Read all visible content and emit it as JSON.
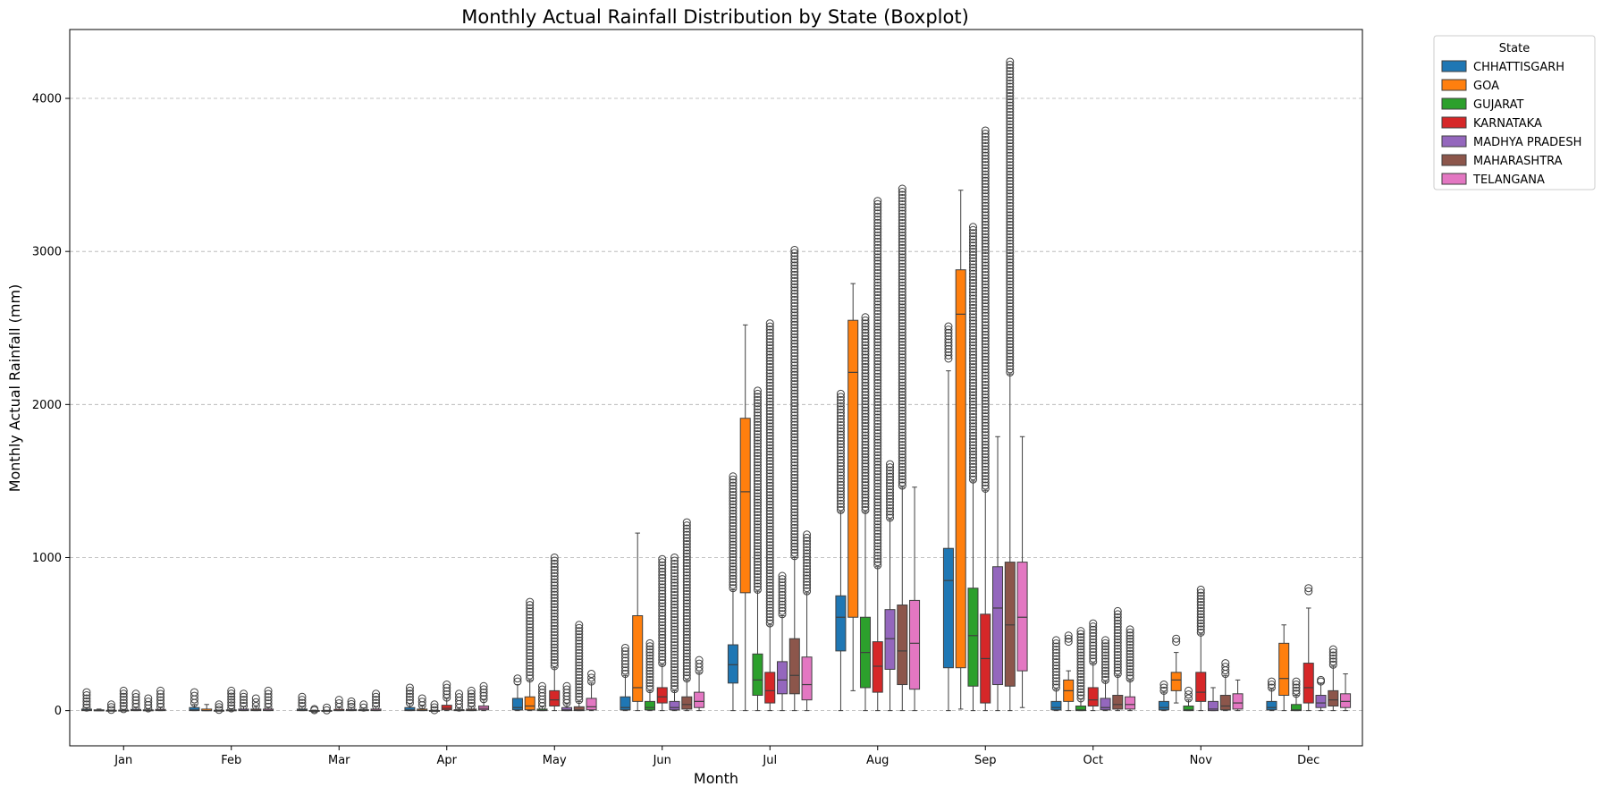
{
  "chart_data": {
    "type": "boxplot",
    "title": "Monthly Actual Rainfall Distribution by State (Boxplot)",
    "xlabel": "Month",
    "ylabel": "Monthly Actual Rainfall (mm)",
    "ylim": [
      -230,
      4450
    ],
    "yticks": [
      0,
      1000,
      2000,
      3000,
      4000
    ],
    "grid": "y-dashed",
    "legend": {
      "title": "State",
      "placement": "outside-top-right"
    },
    "categories": [
      "Jan",
      "Feb",
      "Mar",
      "Apr",
      "May",
      "Jun",
      "Jul",
      "Aug",
      "Sep",
      "Oct",
      "Nov",
      "Dec"
    ],
    "series": [
      {
        "name": "CHHATTISGARH",
        "color": "#1f77b4",
        "boxes": [
          {
            "q1": 0,
            "med": 3,
            "q3": 10,
            "wlo": 0,
            "whi": 20,
            "olo": 20,
            "ohi": 120
          },
          {
            "q1": 0,
            "med": 5,
            "q3": 20,
            "wlo": 0,
            "whi": 40,
            "olo": 50,
            "ohi": 120
          },
          {
            "q1": 0,
            "med": 3,
            "q3": 10,
            "wlo": 0,
            "whi": 25,
            "olo": 30,
            "ohi": 90
          },
          {
            "q1": 0,
            "med": 5,
            "q3": 20,
            "wlo": 0,
            "whi": 45,
            "olo": 50,
            "ohi": 150
          },
          {
            "q1": 5,
            "med": 20,
            "q3": 80,
            "wlo": 0,
            "whi": 170,
            "olo": 190,
            "ohi": 210
          },
          {
            "q1": 5,
            "med": 20,
            "q3": 90,
            "wlo": 0,
            "whi": 230,
            "olo": 240,
            "ohi": 410
          },
          {
            "q1": 180,
            "med": 300,
            "q3": 430,
            "wlo": 0,
            "whi": 790,
            "olo": 800,
            "ohi": 1530
          },
          {
            "q1": 390,
            "med": 610,
            "q3": 750,
            "wlo": 0,
            "whi": 1300,
            "olo": 1310,
            "ohi": 2070
          },
          {
            "q1": 280,
            "med": 850,
            "q3": 1060,
            "wlo": 0,
            "whi": 2220,
            "olo": 2300,
            "ohi": 2510
          },
          {
            "q1": 5,
            "med": 20,
            "q3": 60,
            "wlo": 0,
            "whi": 140,
            "olo": 150,
            "ohi": 460
          },
          {
            "q1": 5,
            "med": 20,
            "q3": 60,
            "wlo": 0,
            "whi": 120,
            "olo": 130,
            "ohi": 170
          },
          {
            "q1": 5,
            "med": 20,
            "q3": 60,
            "wlo": 0,
            "whi": 140,
            "olo": 150,
            "ohi": 190
          }
        ]
      },
      {
        "name": "GOA",
        "color": "#ff7f0e",
        "boxes": [
          {
            "q1": 0,
            "med": 0,
            "q3": 5,
            "wlo": 0,
            "whi": 10,
            "olo": null,
            "ohi": null
          },
          {
            "q1": 0,
            "med": 0,
            "q3": 10,
            "wlo": 0,
            "whi": 40,
            "olo": null,
            "ohi": null
          },
          {
            "q1": 0,
            "med": 0,
            "q3": 1,
            "wlo": 0,
            "whi": 3,
            "olo": 3,
            "ohi": 10
          },
          {
            "q1": 0,
            "med": 2,
            "q3": 10,
            "wlo": 0,
            "whi": 30,
            "olo": 35,
            "ohi": 80
          },
          {
            "q1": 5,
            "med": 30,
            "q3": 90,
            "wlo": 0,
            "whi": 200,
            "olo": 210,
            "ohi": 710
          },
          {
            "q1": 60,
            "med": 150,
            "q3": 620,
            "wlo": 0,
            "whi": 1160,
            "olo": null,
            "ohi": null
          },
          {
            "q1": 770,
            "med": 1430,
            "q3": 1910,
            "wlo": 0,
            "whi": 2520,
            "olo": null,
            "ohi": null
          },
          {
            "q1": 610,
            "med": 2210,
            "q3": 2550,
            "wlo": 130,
            "whi": 2790,
            "olo": null,
            "ohi": null
          },
          {
            "q1": 280,
            "med": 2590,
            "q3": 2880,
            "wlo": 10,
            "whi": 3400,
            "olo": null,
            "ohi": null
          },
          {
            "q1": 60,
            "med": 130,
            "q3": 200,
            "wlo": 0,
            "whi": 260,
            "olo": 450,
            "ohi": 490
          },
          {
            "q1": 130,
            "med": 200,
            "q3": 250,
            "wlo": 50,
            "whi": 380,
            "olo": 450,
            "ohi": 470
          },
          {
            "q1": 100,
            "med": 210,
            "q3": 440,
            "wlo": 0,
            "whi": 560,
            "olo": null,
            "ohi": null
          }
        ]
      },
      {
        "name": "GUJARAT",
        "color": "#2ca02c",
        "boxes": [
          {
            "q1": 0,
            "med": 0,
            "q3": 2,
            "wlo": 0,
            "whi": 4,
            "olo": 5,
            "ohi": 40
          },
          {
            "q1": 0,
            "med": 0,
            "q3": 2,
            "wlo": 0,
            "whi": 4,
            "olo": 5,
            "ohi": 40
          },
          {
            "q1": 0,
            "med": 0,
            "q3": 1,
            "wlo": 0,
            "whi": 2,
            "olo": 2,
            "ohi": 20
          },
          {
            "q1": 0,
            "med": 0,
            "q3": 1,
            "wlo": 0,
            "whi": 3,
            "olo": 3,
            "ohi": 40
          },
          {
            "q1": 0,
            "med": 2,
            "q3": 10,
            "wlo": 0,
            "whi": 25,
            "olo": 30,
            "ohi": 160
          },
          {
            "q1": 5,
            "med": 20,
            "q3": 60,
            "wlo": 0,
            "whi": 130,
            "olo": 140,
            "ohi": 440
          },
          {
            "q1": 100,
            "med": 200,
            "q3": 370,
            "wlo": 0,
            "whi": 780,
            "olo": 790,
            "ohi": 2090
          },
          {
            "q1": 150,
            "med": 380,
            "q3": 610,
            "wlo": 0,
            "whi": 1300,
            "olo": 1310,
            "ohi": 2570
          },
          {
            "q1": 160,
            "med": 490,
            "q3": 800,
            "wlo": 0,
            "whi": 1500,
            "olo": 1510,
            "ohi": 3160
          },
          {
            "q1": 0,
            "med": 5,
            "q3": 30,
            "wlo": 0,
            "whi": 75,
            "olo": 80,
            "ohi": 520
          },
          {
            "q1": 0,
            "med": 5,
            "q3": 30,
            "wlo": 0,
            "whi": 70,
            "olo": 80,
            "ohi": 130
          },
          {
            "q1": 0,
            "med": 5,
            "q3": 40,
            "wlo": 0,
            "whi": 100,
            "olo": 110,
            "ohi": 190
          }
        ]
      },
      {
        "name": "KARNATAKA",
        "color": "#d62728",
        "boxes": [
          {
            "q1": 0,
            "med": 0,
            "q3": 3,
            "wlo": 0,
            "whi": 8,
            "olo": 10,
            "ohi": 130
          },
          {
            "q1": 0,
            "med": 1,
            "q3": 5,
            "wlo": 0,
            "whi": 12,
            "olo": 15,
            "ohi": 130
          },
          {
            "q1": 0,
            "med": 1,
            "q3": 8,
            "wlo": 0,
            "whi": 20,
            "olo": 25,
            "ohi": 70
          },
          {
            "q1": 5,
            "med": 15,
            "q3": 35,
            "wlo": 0,
            "whi": 80,
            "olo": 85,
            "ohi": 170
          },
          {
            "q1": 30,
            "med": 70,
            "q3": 130,
            "wlo": 0,
            "whi": 280,
            "olo": 290,
            "ohi": 1000
          },
          {
            "q1": 50,
            "med": 90,
            "q3": 150,
            "wlo": 0,
            "whi": 300,
            "olo": 310,
            "ohi": 990
          },
          {
            "q1": 50,
            "med": 130,
            "q3": 250,
            "wlo": 0,
            "whi": 560,
            "olo": 570,
            "ohi": 2530
          },
          {
            "q1": 120,
            "med": 290,
            "q3": 450,
            "wlo": 0,
            "whi": 940,
            "olo": 950,
            "ohi": 3330
          },
          {
            "q1": 50,
            "med": 340,
            "q3": 630,
            "wlo": 0,
            "whi": 1440,
            "olo": 1450,
            "ohi": 3790
          },
          {
            "q1": 30,
            "med": 70,
            "q3": 150,
            "wlo": 0,
            "whi": 310,
            "olo": 320,
            "ohi": 570
          },
          {
            "q1": 60,
            "med": 120,
            "q3": 250,
            "wlo": 0,
            "whi": 500,
            "olo": 510,
            "ohi": 790
          },
          {
            "q1": 50,
            "med": 150,
            "q3": 310,
            "wlo": 0,
            "whi": 670,
            "olo": 780,
            "ohi": 800
          }
        ]
      },
      {
        "name": "MADHYA PRADESH",
        "color": "#9467bd",
        "boxes": [
          {
            "q1": 0,
            "med": 2,
            "q3": 8,
            "wlo": 0,
            "whi": 20,
            "olo": 25,
            "ohi": 110
          },
          {
            "q1": 0,
            "med": 2,
            "q3": 10,
            "wlo": 0,
            "whi": 25,
            "olo": 30,
            "ohi": 110
          },
          {
            "q1": 0,
            "med": 2,
            "q3": 8,
            "wlo": 0,
            "whi": 20,
            "olo": 25,
            "ohi": 60
          },
          {
            "q1": 0,
            "med": 2,
            "q3": 6,
            "wlo": 0,
            "whi": 15,
            "olo": 20,
            "ohi": 110
          },
          {
            "q1": 0,
            "med": 5,
            "q3": 20,
            "wlo": 0,
            "whi": 45,
            "olo": 50,
            "ohi": 160
          },
          {
            "q1": 5,
            "med": 20,
            "q3": 60,
            "wlo": 0,
            "whi": 130,
            "olo": 140,
            "ohi": 1000
          },
          {
            "q1": 110,
            "med": 200,
            "q3": 320,
            "wlo": 0,
            "whi": 620,
            "olo": 630,
            "ohi": 880
          },
          {
            "q1": 270,
            "med": 470,
            "q3": 660,
            "wlo": 0,
            "whi": 1250,
            "olo": 1260,
            "ohi": 1610
          },
          {
            "q1": 170,
            "med": 670,
            "q3": 940,
            "wlo": 0,
            "whi": 1790,
            "olo": null,
            "ohi": null
          },
          {
            "q1": 5,
            "med": 20,
            "q3": 80,
            "wlo": 0,
            "whi": 190,
            "olo": 200,
            "ohi": 460
          },
          {
            "q1": 0,
            "med": 10,
            "q3": 60,
            "wlo": 0,
            "whi": 150,
            "olo": null,
            "ohi": null
          },
          {
            "q1": 20,
            "med": 50,
            "q3": 100,
            "wlo": 0,
            "whi": 180,
            "olo": 190,
            "ohi": 200
          }
        ]
      },
      {
        "name": "MAHARASHTRA",
        "color": "#8c564b",
        "boxes": [
          {
            "q1": 0,
            "med": 1,
            "q3": 5,
            "wlo": 0,
            "whi": 12,
            "olo": 15,
            "ohi": 80
          },
          {
            "q1": 0,
            "med": 2,
            "q3": 10,
            "wlo": 0,
            "whi": 25,
            "olo": 30,
            "ohi": 80
          },
          {
            "q1": 0,
            "med": 2,
            "q3": 6,
            "wlo": 0,
            "whi": 15,
            "olo": 20,
            "ohi": 40
          },
          {
            "q1": 0,
            "med": 2,
            "q3": 10,
            "wlo": 0,
            "whi": 25,
            "olo": 30,
            "ohi": 130
          },
          {
            "q1": 0,
            "med": 5,
            "q3": 25,
            "wlo": 0,
            "whi": 60,
            "olo": 70,
            "ohi": 560
          },
          {
            "q1": 10,
            "med": 40,
            "q3": 90,
            "wlo": 0,
            "whi": 200,
            "olo": 210,
            "ohi": 1230
          },
          {
            "q1": 110,
            "med": 230,
            "q3": 470,
            "wlo": 0,
            "whi": 1000,
            "olo": 1010,
            "ohi": 3010
          },
          {
            "q1": 170,
            "med": 390,
            "q3": 690,
            "wlo": 0,
            "whi": 1460,
            "olo": 1470,
            "ohi": 3410
          },
          {
            "q1": 160,
            "med": 560,
            "q3": 970,
            "wlo": 0,
            "whi": 2200,
            "olo": 2210,
            "ohi": 4240
          },
          {
            "q1": 10,
            "med": 40,
            "q3": 100,
            "wlo": 0,
            "whi": 230,
            "olo": 240,
            "ohi": 650
          },
          {
            "q1": 5,
            "med": 30,
            "q3": 100,
            "wlo": 0,
            "whi": 230,
            "olo": 240,
            "ohi": 310
          },
          {
            "q1": 30,
            "med": 70,
            "q3": 130,
            "wlo": 0,
            "whi": 290,
            "olo": 300,
            "ohi": 400
          }
        ]
      },
      {
        "name": "TELANGANA",
        "color": "#e377c2",
        "boxes": [
          {
            "q1": 0,
            "med": 2,
            "q3": 8,
            "wlo": 0,
            "whi": 20,
            "olo": 25,
            "ohi": 130
          },
          {
            "q1": 0,
            "med": 2,
            "q3": 10,
            "wlo": 0,
            "whi": 20,
            "olo": 25,
            "ohi": 130
          },
          {
            "q1": 0,
            "med": 2,
            "q3": 10,
            "wlo": 0,
            "whi": 25,
            "olo": 30,
            "ohi": 110
          },
          {
            "q1": 5,
            "med": 15,
            "q3": 30,
            "wlo": 0,
            "whi": 70,
            "olo": 75,
            "ohi": 160
          },
          {
            "q1": 5,
            "med": 25,
            "q3": 80,
            "wlo": 0,
            "whi": 180,
            "olo": 190,
            "ohi": 240
          },
          {
            "q1": 20,
            "med": 60,
            "q3": 120,
            "wlo": 0,
            "whi": 250,
            "olo": 260,
            "ohi": 330
          },
          {
            "q1": 70,
            "med": 170,
            "q3": 350,
            "wlo": 0,
            "whi": 770,
            "olo": 780,
            "ohi": 1150
          },
          {
            "q1": 140,
            "med": 440,
            "q3": 720,
            "wlo": 0,
            "whi": 1460,
            "olo": null,
            "ohi": null
          },
          {
            "q1": 260,
            "med": 610,
            "q3": 970,
            "wlo": 20,
            "whi": 1790,
            "olo": null,
            "ohi": null
          },
          {
            "q1": 10,
            "med": 40,
            "q3": 90,
            "wlo": 0,
            "whi": 200,
            "olo": 210,
            "ohi": 530
          },
          {
            "q1": 10,
            "med": 50,
            "q3": 110,
            "wlo": 0,
            "whi": 200,
            "olo": null,
            "ohi": null
          },
          {
            "q1": 20,
            "med": 60,
            "q3": 110,
            "wlo": 0,
            "whi": 240,
            "olo": null,
            "ohi": null
          }
        ]
      }
    ]
  }
}
